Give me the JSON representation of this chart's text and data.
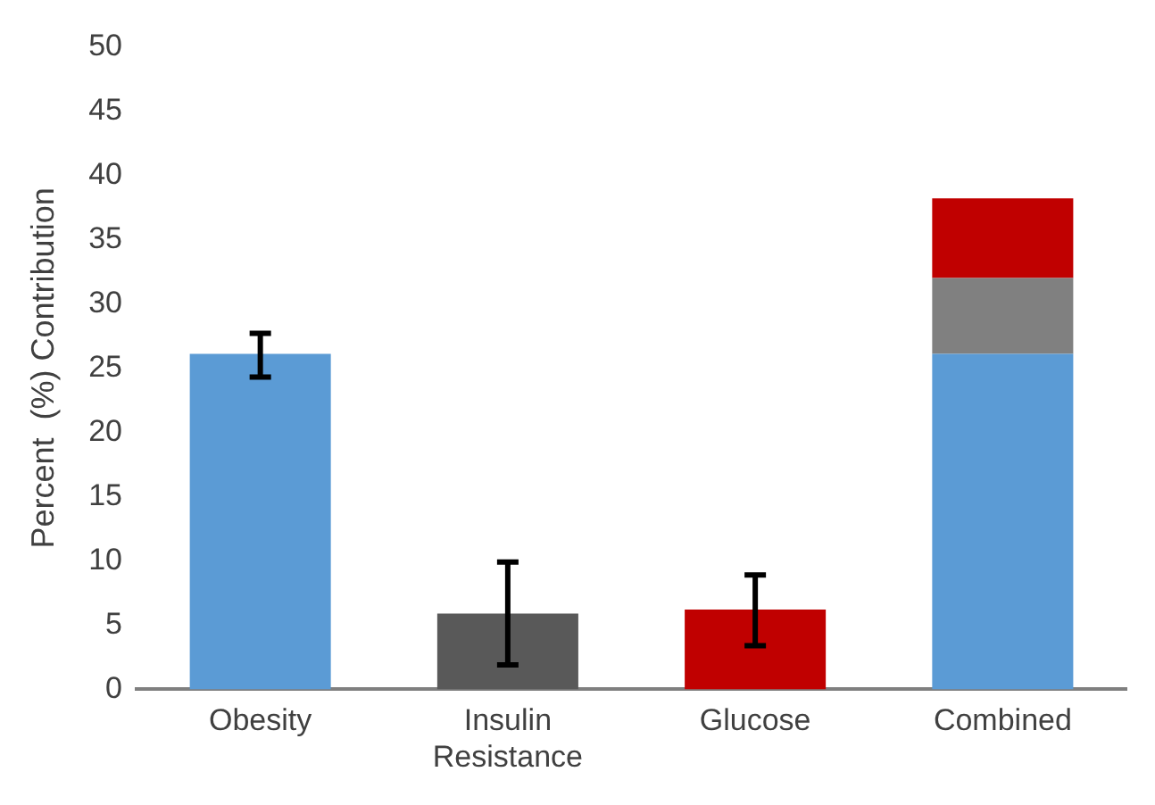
{
  "chart_data": {
    "type": "bar",
    "ylabel": "Percent  (%) Contribution",
    "categories": [
      "Obesity",
      "Insulin\nResistance",
      "Glucose",
      "Combined"
    ],
    "stacked": true,
    "ylim": [
      0,
      50
    ],
    "yticks": [
      0,
      5,
      10,
      15,
      20,
      25,
      30,
      35,
      40,
      45,
      50
    ],
    "grid": false,
    "legend": false,
    "series": [
      {
        "color": "#5b9bd5",
        "values": [
          26.1,
          null,
          null,
          26.1
        ],
        "errors": [
          [
            24.3,
            27.7
          ],
          null,
          null,
          null
        ]
      },
      {
        "colors": [
          "#595959",
          "#595959",
          "#595959",
          "#808080"
        ],
        "values": [
          null,
          5.9,
          null,
          5.9
        ],
        "errors": [
          null,
          [
            1.9,
            9.9
          ],
          null,
          null
        ]
      },
      {
        "color": "#c00000",
        "values": [
          null,
          null,
          6.2,
          6.2
        ],
        "errors": [
          null,
          null,
          [
            3.4,
            8.9
          ],
          null
        ]
      }
    ]
  }
}
